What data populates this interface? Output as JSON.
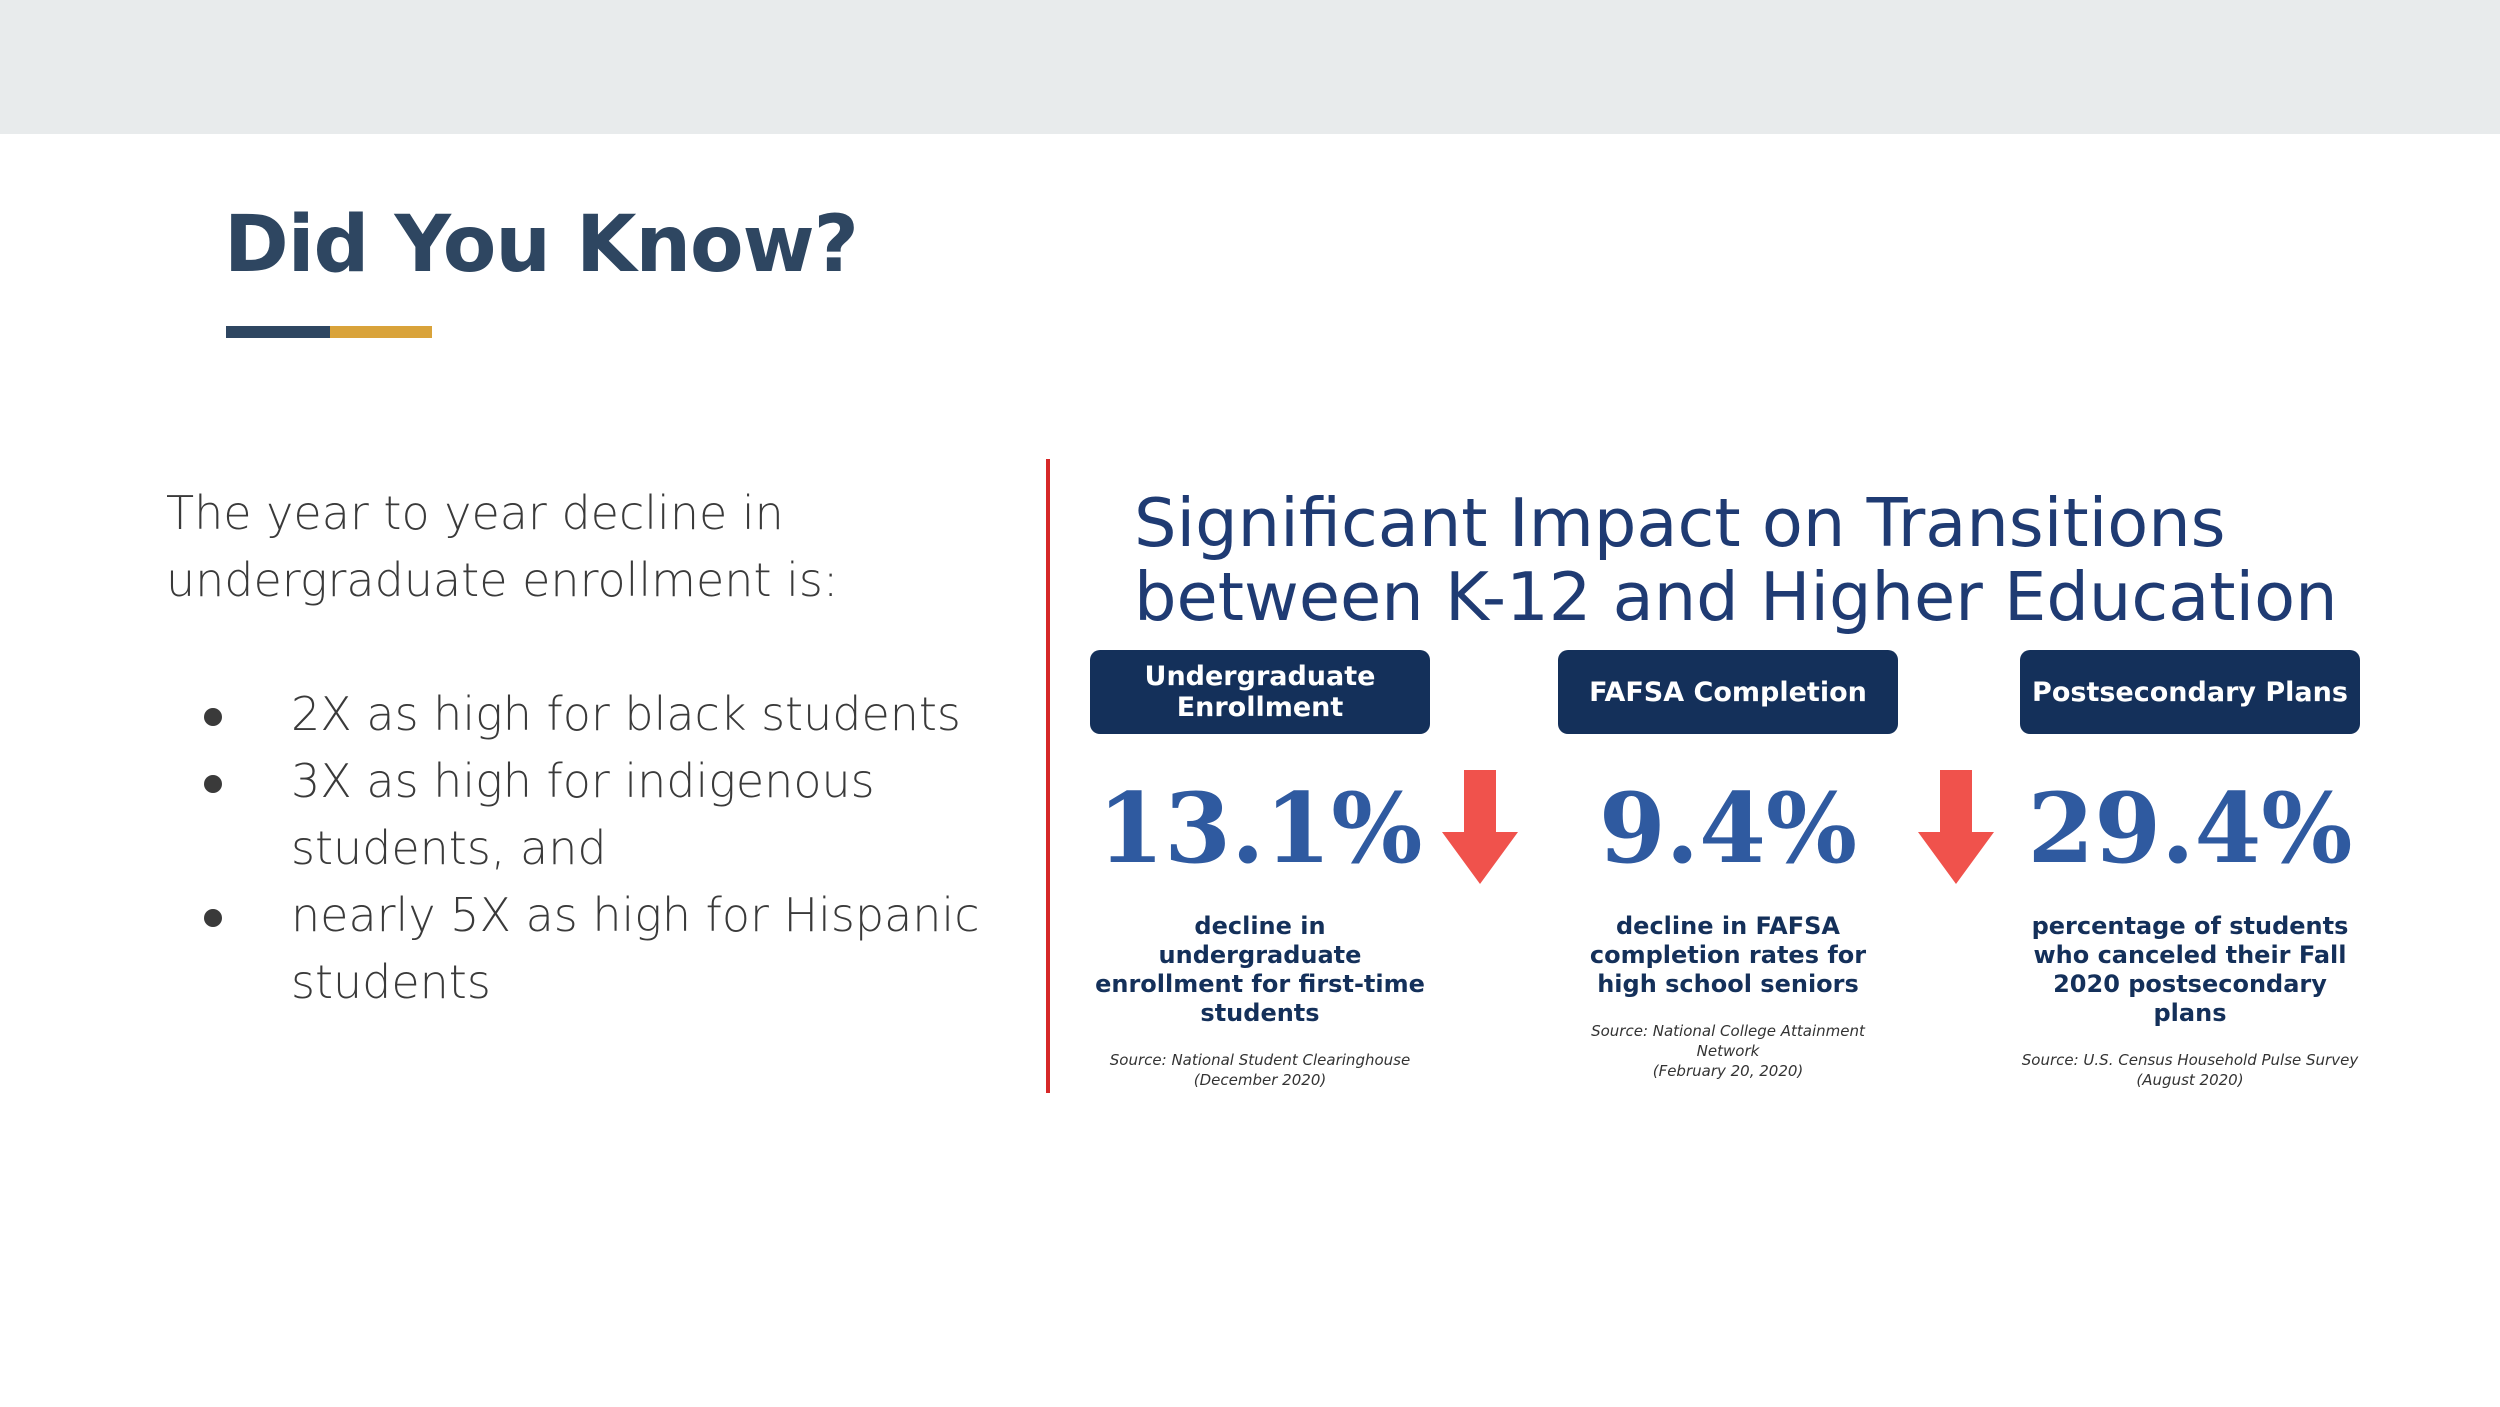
{
  "slide": {
    "title": "Did You Know?",
    "accent_colors": {
      "navy": "#2e4661",
      "gold": "#d9a33a",
      "divider_red": "#d62828"
    }
  },
  "left_panel": {
    "intro": "The year to year decline in undergraduate enrollment is:",
    "bullets": [
      "2X as high for black students",
      "3X as high for indigenous students, and",
      "nearly 5X as high for Hispanic students"
    ]
  },
  "infographic": {
    "title_line1": "Significant Impact on Transitions",
    "title_line2": "between K-12 and Higher Education",
    "stats": [
      {
        "label": "Undergraduate Enrollment",
        "value": "13.1%",
        "description": "decline in undergraduate enrollment for first-time students",
        "source_line1": "Source: National Student Clearinghouse",
        "source_line2": "(December 2020)"
      },
      {
        "label": "FAFSA Completion",
        "value": "9.4%",
        "description": "decline in FAFSA completion rates for high school seniors",
        "source_line1": "Source: National College Attainment Network",
        "source_line2": "(February 20, 2020)"
      },
      {
        "label": "Postsecondary Plans",
        "value": "29.4%",
        "description": "percentage of students who canceled their Fall 2020 postsecondary plans",
        "source_line1": "Source: U.S. Census Household Pulse Survey",
        "source_line2": "(August 2020)"
      }
    ],
    "icons": [
      "down-arrow-icon",
      "down-arrow-icon"
    ],
    "colors": {
      "pill_bg": "#14305a",
      "value": "#2f5aa0",
      "arrow": "#f0524c"
    }
  }
}
